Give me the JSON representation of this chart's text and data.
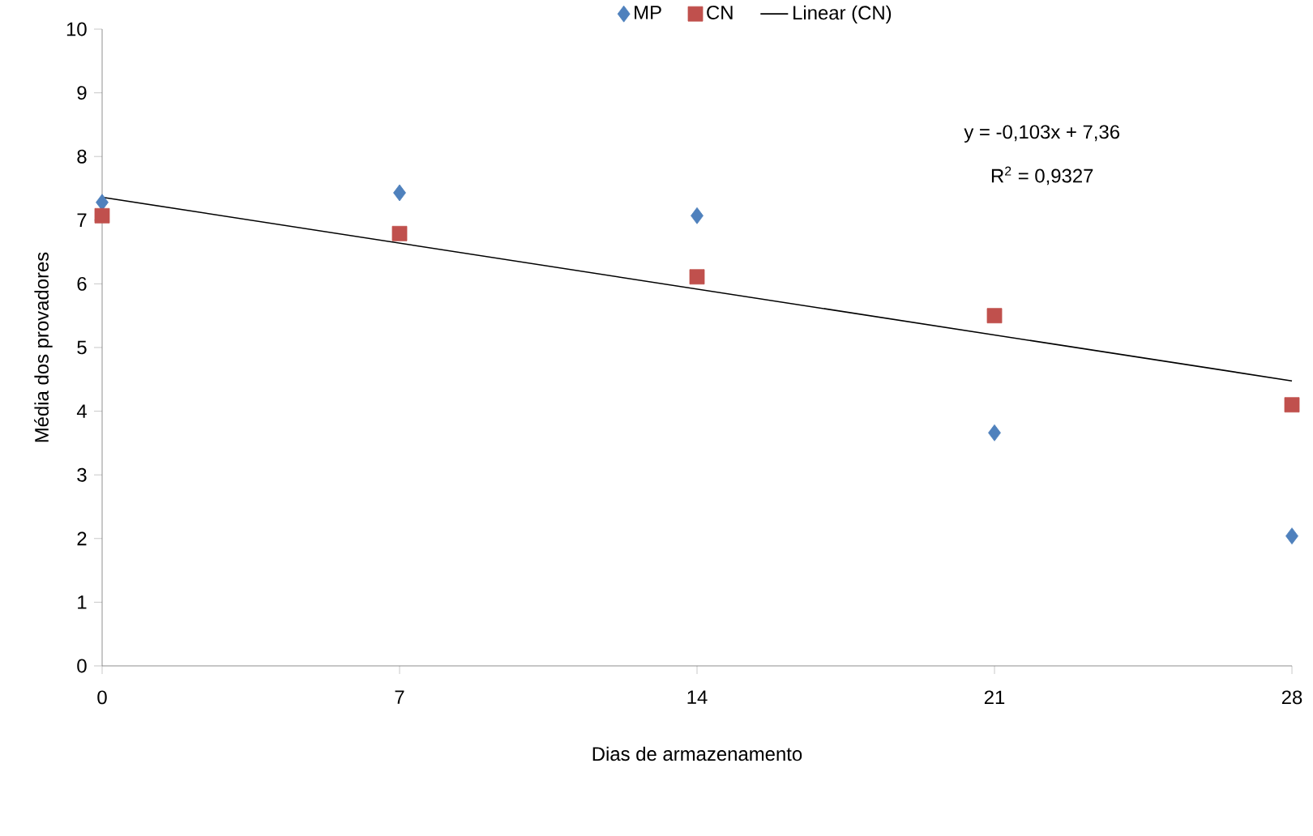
{
  "chart_data": {
    "type": "scatter",
    "xlabel": "Dias de armazenamento",
    "ylabel": "Média dos provadores",
    "xlim": [
      0,
      28
    ],
    "xticks": [
      0,
      7,
      14,
      21,
      28
    ],
    "ylim": [
      0,
      10
    ],
    "yticks": [
      0,
      1,
      2,
      3,
      4,
      5,
      6,
      7,
      8,
      9,
      10
    ],
    "grid": false,
    "legend": "top",
    "annotations": [
      "y = -0,103x + 7,36",
      "R$^{2}$ = 0,9327"
    ],
    "series": [
      {
        "name": "MP",
        "color": "#4f81bd",
        "marker": "diamond",
        "x": [
          0,
          7,
          14,
          21,
          28
        ],
        "values": [
          7.28,
          7.43,
          7.07,
          3.66,
          2.04
        ]
      },
      {
        "name": "CN",
        "color": "#c0504d",
        "marker": "square",
        "x": [
          0,
          7,
          14,
          21,
          28
        ],
        "values": [
          7.07,
          6.79,
          6.11,
          5.5,
          4.1
        ]
      },
      {
        "name": "Linear (CN)",
        "type": "line",
        "color": "#000000",
        "marker": "none",
        "x": [
          0,
          28
        ],
        "values": [
          7.36,
          4.476
        ]
      }
    ]
  }
}
